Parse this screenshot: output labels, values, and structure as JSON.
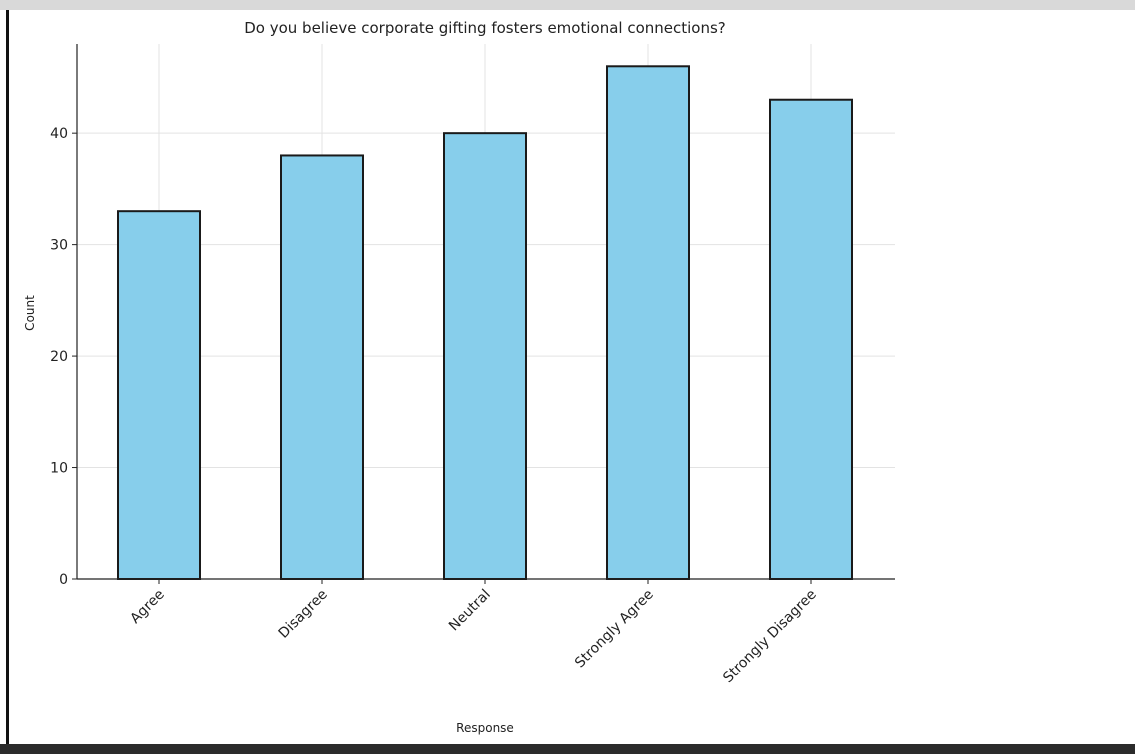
{
  "chart_data": {
    "type": "bar",
    "title": "Do you believe corporate gifting fosters emotional connections?",
    "xlabel": "Response",
    "ylabel": "Count",
    "categories": [
      "Agree",
      "Disagree",
      "Neutral",
      "Strongly Agree",
      "Strongly Disagree"
    ],
    "values": [
      33,
      38,
      40,
      46,
      43
    ],
    "ylim": [
      0,
      48
    ],
    "yticks": [
      "0",
      "10",
      "20",
      "30",
      "40"
    ],
    "grid": true,
    "bar_color": "#87ceeb",
    "edge_color": "#1a1a1a"
  }
}
